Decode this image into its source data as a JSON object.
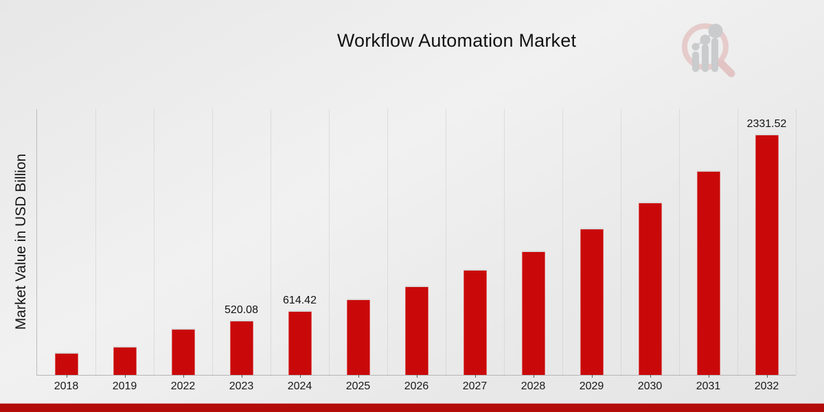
{
  "title": "Workflow Automation Market",
  "y_axis": {
    "label": "Market Value in USD Billion"
  },
  "watermark": {
    "icon": "market-research-future-logo"
  },
  "colors": {
    "bar": "#c90909",
    "bar_top_edge": "#dcdcdc",
    "bottom_strip": "#b30a0a",
    "background": "#ebebeb",
    "gridline": "#c8c8c8",
    "axis_line": "#b8b8b8",
    "text": "#141414",
    "logo_ring": "#e6cbcb",
    "logo_bars": "#c9cbcd"
  },
  "chart_data": {
    "type": "bar",
    "title": "Workflow Automation Market",
    "xlabel": "",
    "ylabel": "Market Value in USD Billion",
    "categories": [
      "2018",
      "2019",
      "2022",
      "2023",
      "2024",
      "2025",
      "2026",
      "2027",
      "2028",
      "2029",
      "2030",
      "2031",
      "2032"
    ],
    "values": [
      205,
      267,
      440,
      520.08,
      614.42,
      726,
      858,
      1013,
      1197,
      1414,
      1671,
      1974,
      2331.52
    ],
    "bar_labels": [
      "",
      "",
      "",
      "520.08",
      "614.42",
      "",
      "",
      "",
      "",
      "",
      "",
      "",
      "2331.52"
    ],
    "ylim": [
      0,
      2585
    ],
    "grid": "vertical-dotted-at-category-boundaries",
    "legend": "none",
    "bar_color": "#c90909"
  }
}
